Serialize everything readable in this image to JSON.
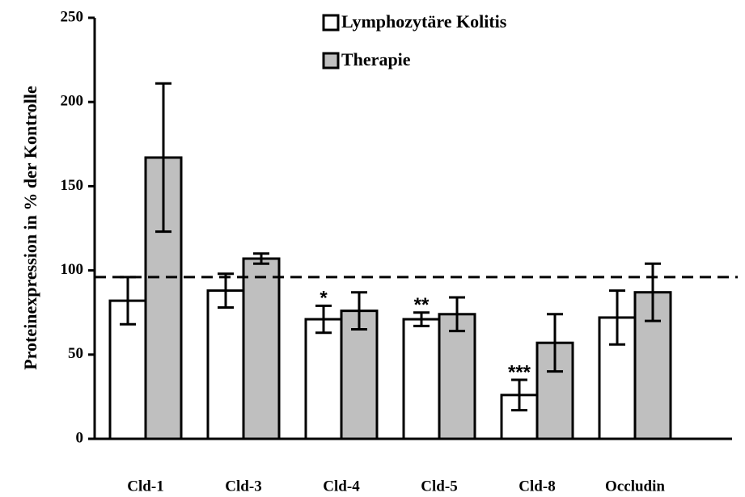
{
  "chart_data": {
    "type": "bar",
    "y_label": "Proteinexpression in % der Kontrolle",
    "categories": [
      "Cld-1",
      "Cld-3",
      "Cld-4",
      "Cld-5",
      "Cld-8",
      "Occludin"
    ],
    "series": [
      {
        "name": "Lymphozytäre Kolitis",
        "color": "#ffffff",
        "values": [
          82,
          88,
          71,
          71,
          26,
          72
        ],
        "errors": [
          14,
          10,
          8,
          4,
          9,
          16
        ]
      },
      {
        "name": "Therapie",
        "color": "#bfbfbf",
        "values": [
          167,
          107,
          76,
          74,
          57,
          87
        ],
        "errors": [
          44,
          3,
          11,
          10,
          17,
          17
        ]
      }
    ],
    "ylim": [
      0,
      250
    ],
    "yticks": [
      0,
      50,
      100,
      150,
      200,
      250
    ],
    "reference_line": 96,
    "annotations": [
      {
        "category": "Cld-4",
        "text": "*"
      },
      {
        "category": "Cld-5",
        "text": "**"
      },
      {
        "category": "Cld-8",
        "text": "***"
      }
    ],
    "legend": "top"
  }
}
